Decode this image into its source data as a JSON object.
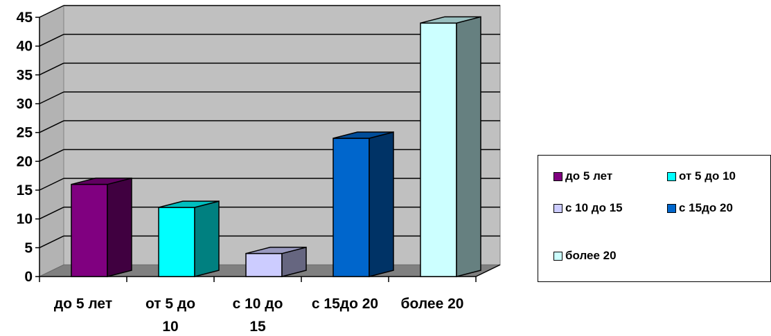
{
  "chart_data": {
    "type": "bar",
    "categories": [
      "до 5 лет",
      "от 5 до 10",
      "с 10 до 15",
      "с 15до 20",
      "более 20"
    ],
    "category_label_lines": [
      [
        "до 5 лет"
      ],
      [
        "от 5 до",
        "10"
      ],
      [
        "с 10 до",
        "15"
      ],
      [
        "с 15до 20"
      ],
      [
        "более 20"
      ]
    ],
    "values": [
      16,
      12,
      4,
      24,
      44
    ],
    "colors": [
      "#800080",
      "#00FFFF",
      "#CCCCFF",
      "#0066CC",
      "#CCFFFF"
    ],
    "ylim": [
      0,
      45
    ],
    "yticks": [
      0,
      5,
      10,
      15,
      20,
      25,
      30,
      35,
      40,
      45
    ],
    "grid": true,
    "legend_position": "right",
    "title": "",
    "xlabel": "",
    "ylabel": ""
  },
  "legend": {
    "items": [
      {
        "label": "до 5 лет",
        "color": "#800080"
      },
      {
        "label": "от 5 до 10",
        "color": "#00FFFF"
      },
      {
        "label": "с 10 до 15",
        "color": "#CCCCFF"
      },
      {
        "label": "с 15до 20",
        "color": "#0066CC"
      },
      {
        "label": "более 20",
        "color": "#CCFFFF"
      }
    ]
  }
}
